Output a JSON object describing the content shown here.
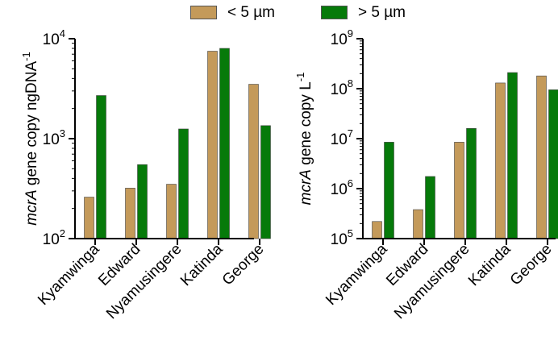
{
  "colors": {
    "small": "#c49a5a",
    "large": "#067a0a",
    "axis": "#000000"
  },
  "legend": {
    "items": [
      {
        "label": "< 5 µm",
        "color": "#c49a5a"
      },
      {
        "label": "> 5 µm",
        "color": "#067a0a"
      }
    ]
  },
  "chart_data": [
    {
      "type": "bar",
      "yscale": "log",
      "ylim": [
        100,
        10000
      ],
      "ylabel_italic": "mcrA",
      "ylabel_rest": " gene copy  ngDNA",
      "ylabel_sup": "-1",
      "yticks": [
        {
          "value": 100,
          "base": "10",
          "exp": "2"
        },
        {
          "value": 1000,
          "base": "10",
          "exp": "3"
        },
        {
          "value": 10000,
          "base": "10",
          "exp": "4"
        }
      ],
      "categories": [
        "Kyamwinga",
        "Edward",
        "Nyamusingere",
        "Katinda",
        "George"
      ],
      "series": [
        {
          "name": "< 5 µm",
          "values": [
            260,
            320,
            350,
            7500,
            3500
          ]
        },
        {
          "name": "> 5 µm",
          "values": [
            2700,
            550,
            1250,
            8000,
            1350
          ]
        }
      ]
    },
    {
      "type": "bar",
      "yscale": "log",
      "ylim": [
        100000,
        1000000000
      ],
      "ylabel_italic": "mcrA",
      "ylabel_rest": " gene copy L",
      "ylabel_sup": "-1",
      "yticks": [
        {
          "value": 100000,
          "base": "10",
          "exp": "5"
        },
        {
          "value": 1000000,
          "base": "10",
          "exp": "6"
        },
        {
          "value": 10000000,
          "base": "10",
          "exp": "7"
        },
        {
          "value": 100000000,
          "base": "10",
          "exp": "8"
        },
        {
          "value": 1000000000,
          "base": "10",
          "exp": "9"
        }
      ],
      "categories": [
        "Kyamwinga",
        "Edward",
        "Nyamusingere",
        "Katinda",
        "George"
      ],
      "series": [
        {
          "name": "< 5 µm",
          "values": [
            220000,
            380000,
            8500000,
            130000000,
            180000000
          ]
        },
        {
          "name": "> 5 µm",
          "values": [
            8500000,
            1750000,
            16000000,
            210000000,
            95000000
          ]
        }
      ]
    }
  ]
}
